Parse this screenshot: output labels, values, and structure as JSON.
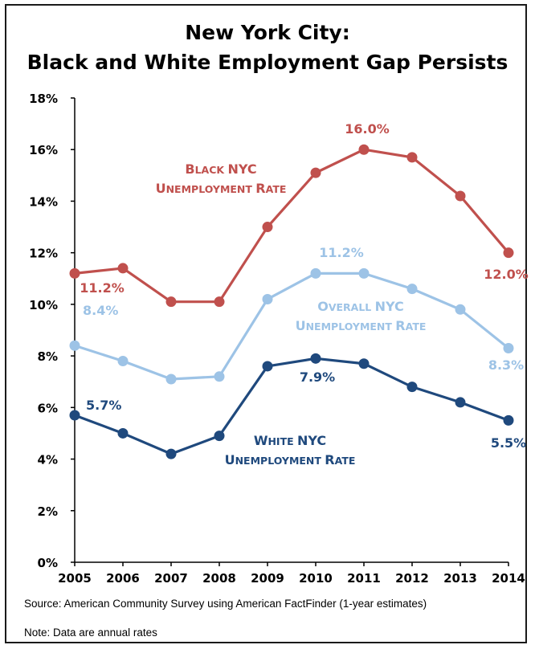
{
  "chart_data": {
    "type": "line",
    "title_line1": "New York City:",
    "title_line2": "Black and White Employment Gap Persists",
    "x": [
      "2005",
      "2006",
      "2007",
      "2008",
      "2009",
      "2010",
      "2011",
      "2012",
      "2013",
      "2014"
    ],
    "ylim": [
      0,
      18
    ],
    "yticks": [
      "0%",
      "2%",
      "4%",
      "6%",
      "8%",
      "10%",
      "12%",
      "14%",
      "16%",
      "18%"
    ],
    "grid": false,
    "series": [
      {
        "key": "black",
        "color": "#c0504d",
        "label_line1": "Black NYC",
        "label_line2": "Unemployment Rate",
        "values": [
          11.2,
          11.4,
          10.1,
          10.1,
          13.0,
          15.1,
          16.0,
          15.7,
          14.2,
          12.0
        ],
        "data_labels": [
          {
            "index": 0,
            "text": "11.2%"
          },
          {
            "index": 6,
            "text": "16.0%"
          },
          {
            "index": 9,
            "text": "12.0%"
          }
        ]
      },
      {
        "key": "overall",
        "color": "#9dc3e6",
        "label_line1": "Overall NYC",
        "label_line2": "Unemployment Rate",
        "values": [
          8.4,
          7.8,
          7.1,
          7.2,
          10.2,
          11.2,
          11.2,
          10.6,
          9.8,
          8.3
        ],
        "data_labels": [
          {
            "index": 0,
            "text": "8.4%"
          },
          {
            "index": 5,
            "text": "11.2%"
          },
          {
            "index": 9,
            "text": "8.3%"
          }
        ]
      },
      {
        "key": "white",
        "color": "#1f497d",
        "label_line1": "White NYC",
        "label_line2": "Unemployment Rate",
        "values": [
          5.7,
          5.0,
          4.2,
          4.9,
          7.6,
          7.9,
          7.7,
          6.8,
          6.2,
          5.5
        ],
        "data_labels": [
          {
            "index": 0,
            "text": "5.7%"
          },
          {
            "index": 5,
            "text": "7.9%"
          },
          {
            "index": 9,
            "text": "5.5%"
          }
        ]
      }
    ]
  },
  "footnotes": {
    "source": "Source: American Community Survey using American FactFinder (1-year estimates)",
    "note": "Note: Data are annual rates"
  }
}
